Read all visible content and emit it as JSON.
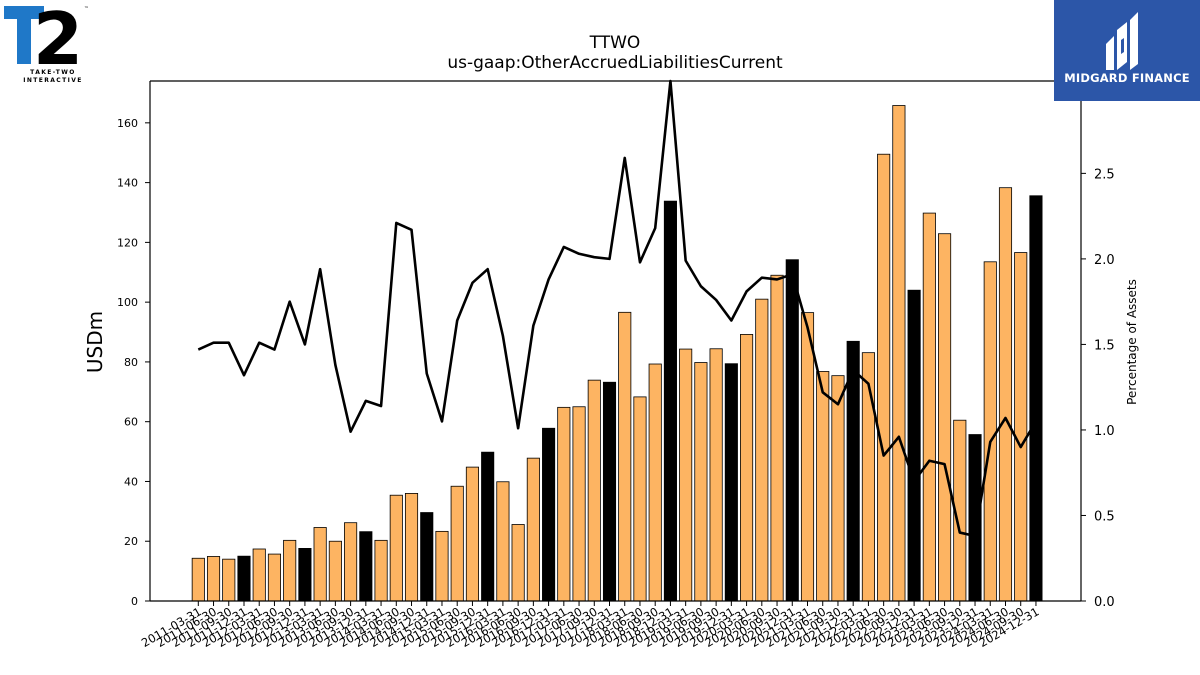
{
  "logo_left": {
    "tm": "™",
    "line1": "TAKE-TWO",
    "line2": "INTERACTIVE",
    "color_blue": "#1f78c8"
  },
  "logo_right": {
    "text": "MIDGARD FINANCE",
    "bg_color": "#2c56a8"
  },
  "chart_data": {
    "type": "bar",
    "title": "TTWO",
    "subtitle": "us-gaap:OtherAccruedLiabilitiesCurrent",
    "ylabel": "USDm",
    "y2label": "Percentage of Assets",
    "ylim": [
      0,
      174
    ],
    "y2lim": [
      0,
      3.04
    ],
    "yticks": [
      0,
      20,
      40,
      60,
      80,
      100,
      120,
      140,
      160
    ],
    "y2ticks": [
      "0.0",
      "0.5",
      "1.0",
      "1.5",
      "2.0",
      "2.5"
    ],
    "grid": false,
    "colors": {
      "quarter_bar": "#fdb462",
      "fiscal_year_end_bar": "#000000",
      "line": "#000000"
    },
    "categories": [
      "2011-03-31",
      "2011-06-30",
      "2011-09-30",
      "2011-12-31",
      "2012-03-31",
      "2012-06-30",
      "2012-09-30",
      "2012-12-31",
      "2013-03-31",
      "2013-06-30",
      "2013-09-30",
      "2013-12-31",
      "2014-03-31",
      "2014-06-30",
      "2014-09-30",
      "2014-12-31",
      "2015-03-31",
      "2015-06-30",
      "2015-09-30",
      "2015-12-31",
      "2016-03-31",
      "2016-06-30",
      "2016-09-30",
      "2016-12-31",
      "2017-03-31",
      "2017-06-30",
      "2017-09-30",
      "2017-12-31",
      "2018-03-31",
      "2018-06-30",
      "2018-09-30",
      "2018-12-31",
      "2019-03-31",
      "2019-06-30",
      "2019-09-30",
      "2019-12-31",
      "2020-03-31",
      "2020-06-30",
      "2020-09-30",
      "2020-12-31",
      "2021-03-31",
      "2021-06-30",
      "2021-09-30",
      "2021-12-31",
      "2022-03-31",
      "2022-06-30",
      "2022-09-30",
      "2022-12-31",
      "2023-03-31",
      "2023-06-30",
      "2023-09-30",
      "2023-12-31",
      "2024-03-31",
      "2024-06-30",
      "2024-09-30",
      "2024-12-31"
    ],
    "series": [
      {
        "kind": "bar",
        "values": [
          14.3,
          14.9,
          14.0,
          15.0,
          17.4,
          15.7,
          20.3,
          17.6,
          24.6,
          20.0,
          26.2,
          23.2,
          20.3,
          35.4,
          36.0,
          29.6,
          23.3,
          38.4,
          44.8,
          49.8,
          39.9,
          25.6,
          47.8,
          57.8,
          64.8,
          65.0,
          73.9,
          73.2,
          96.6,
          68.3,
          79.3,
          133.8,
          84.3,
          79.8,
          84.4,
          79.4,
          89.2,
          101.0,
          109.0,
          114.2,
          96.5,
          76.8,
          75.4,
          86.9,
          83.1,
          149.5,
          165.8,
          104.0,
          129.8,
          122.9,
          60.5,
          55.7,
          113.5,
          138.3,
          116.6,
          135.6
        ],
        "fiscal_year_end": [
          false,
          false,
          false,
          true,
          false,
          false,
          false,
          true,
          false,
          false,
          false,
          true,
          false,
          false,
          false,
          true,
          false,
          false,
          false,
          true,
          false,
          false,
          false,
          true,
          false,
          false,
          false,
          true,
          false,
          false,
          false,
          true,
          false,
          false,
          false,
          true,
          false,
          false,
          false,
          true,
          false,
          false,
          false,
          true,
          false,
          false,
          false,
          true,
          false,
          false,
          false,
          true,
          false,
          false,
          false,
          true
        ]
      },
      {
        "kind": "line",
        "axis": "right",
        "values": [
          1.47,
          1.51,
          1.51,
          1.32,
          1.51,
          1.47,
          1.75,
          1.5,
          1.94,
          1.38,
          0.99,
          1.17,
          1.14,
          2.21,
          2.17,
          1.33,
          1.05,
          1.64,
          1.86,
          1.94,
          1.55,
          1.01,
          1.61,
          1.88,
          2.07,
          2.03,
          2.01,
          2.0,
          2.59,
          1.98,
          2.18,
          3.04,
          1.99,
          1.84,
          1.76,
          1.64,
          1.81,
          1.89,
          1.88,
          1.91,
          1.6,
          1.22,
          1.15,
          1.35,
          1.27,
          0.85,
          0.96,
          0.7,
          0.82,
          0.8,
          0.4,
          0.38,
          0.93,
          1.07,
          0.9,
          1.05
        ]
      }
    ]
  }
}
